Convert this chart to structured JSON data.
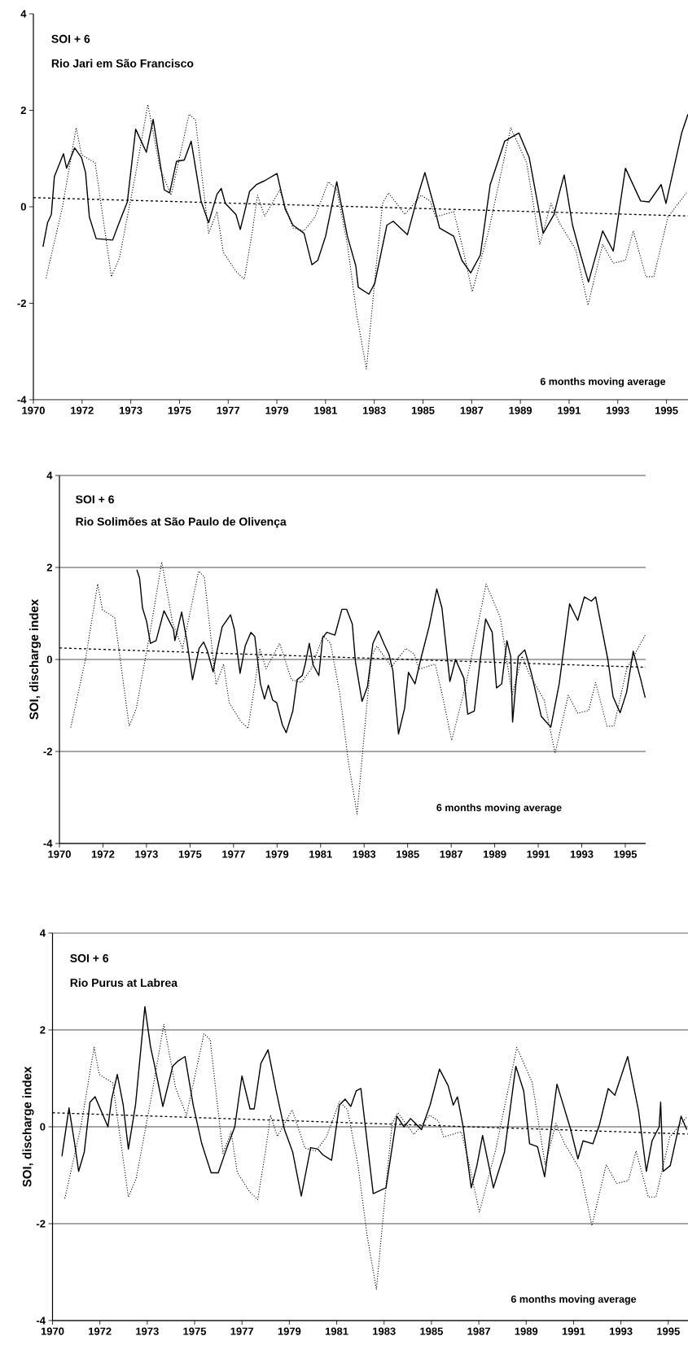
{
  "chart_data": [
    {
      "type": "line",
      "annotations": [
        "SOI + 6",
        "Rio Jari em São Francisco",
        "6 months moving average"
      ],
      "xlim": [
        1969.6,
        1995.45
      ],
      "ylim": [
        -4,
        4
      ],
      "xticks": [
        {
          "value": 1969.6,
          "label": "1970"
        },
        {
          "value": 1971.523,
          "label": "1972"
        },
        {
          "value": 1973.446,
          "label": "1973"
        },
        {
          "value": 1975.369,
          "label": "1975"
        },
        {
          "value": 1977.292,
          "label": "1977"
        },
        {
          "value": 1979.215,
          "label": "1979"
        },
        {
          "value": 1981.138,
          "label": "1981"
        },
        {
          "value": 1983.062,
          "label": "1983"
        },
        {
          "value": 1984.985,
          "label": "1985"
        },
        {
          "value": 1986.908,
          "label": "1987"
        },
        {
          "value": 1988.831,
          "label": "1989"
        },
        {
          "value": 1990.754,
          "label": "1991"
        },
        {
          "value": 1992.677,
          "label": "1993"
        },
        {
          "value": 1994.6,
          "label": "1995"
        }
      ],
      "yticks": [
        -4,
        -2,
        0,
        2,
        4
      ],
      "series": [
        {
          "color": "#000000",
          "line_style": "dotted",
          "x": [
            1970.1,
            1970.75,
            1971.29,
            1971.5,
            1972.04,
            1972.68,
            1973.0,
            1973.64,
            1974.12,
            1974.6,
            1975.04,
            1975.75,
            1976.0,
            1976.52,
            1976.85,
            1977.1,
            1977.6,
            1977.93,
            1978.25,
            1978.45,
            1978.73,
            1979.33,
            1979.85,
            1980.29,
            1980.72,
            1981.25,
            1981.58,
            1982.0,
            1982.37,
            1982.75,
            1983.18,
            1983.39,
            1983.62,
            1984.27,
            1984.91,
            1985.27,
            1985.48,
            1986.2,
            1986.52,
            1986.93,
            1987.58,
            1988.45,
            1989.08,
            1989.6,
            1990.04,
            1990.37,
            1991.02,
            1991.5,
            1992.08,
            1992.5,
            1992.98,
            1993.29,
            1993.79,
            1994.1,
            1994.66,
            1995.39
          ],
          "values": [
            -1.48,
            0,
            1.64,
            1.08,
            0.91,
            -1.45,
            -1.06,
            0.69,
            2.12,
            0.8,
            0.24,
            1.92,
            1.8,
            -0.55,
            -0.1,
            -0.94,
            -1.34,
            -1.5,
            -0.5,
            0.24,
            -0.2,
            0.35,
            -0.44,
            -0.5,
            -0.21,
            0.52,
            0.35,
            -0.78,
            -2.24,
            -3.36,
            -1.0,
            0.07,
            0.29,
            -0.16,
            0.24,
            0.12,
            -0.21,
            -0.1,
            -0.78,
            -1.76,
            -0.5,
            1.64,
            0.91,
            -0.78,
            0.07,
            -0.33,
            -0.89,
            -2.04,
            -0.78,
            -1.17,
            -1.11,
            -0.5,
            -1.45,
            -1.45,
            -0.21,
            0.29
          ]
        },
        {
          "color": "#000000",
          "line_style": "solid",
          "x": [
            1969.98,
            1970.16,
            1970.31,
            1970.43,
            1970.79,
            1970.91,
            1971.23,
            1971.5,
            1971.66,
            1971.81,
            1972.08,
            1972.73,
            1972.95,
            1973.31,
            1973.64,
            1974.06,
            1974.33,
            1974.77,
            1974.98,
            1975.25,
            1975.56,
            1975.83,
            1976.22,
            1976.52,
            1976.85,
            1977.02,
            1977.18,
            1977.6,
            1977.77,
            1978.14,
            1978.41,
            1978.73,
            1979.22,
            1979.54,
            1979.85,
            1980.29,
            1980.6,
            1980.83,
            1981.14,
            1981.58,
            1982.0,
            1982.33,
            1982.43,
            1982.85,
            1983.08,
            1983.56,
            1983.81,
            1984.37,
            1984.79,
            1985.06,
            1985.43,
            1985.64,
            1986.2,
            1986.52,
            1986.87,
            1987.25,
            1987.64,
            1988.21,
            1988.77,
            1989.18,
            1989.73,
            1990.16,
            1990.37,
            1990.56,
            1990.89,
            1991.21,
            1991.52,
            1992.08,
            1992.5,
            1992.98,
            1993.58,
            1993.91,
            1994.39,
            1994.58,
            1995.2,
            1995.45
          ],
          "values": [
            -0.83,
            -0.33,
            -0.16,
            0.63,
            1.1,
            0.8,
            1.22,
            1.02,
            0.71,
            -0.21,
            -0.66,
            -0.69,
            -0.38,
            0.1,
            1.61,
            1.13,
            1.81,
            0.35,
            0.29,
            0.94,
            0.97,
            1.36,
            0.12,
            -0.33,
            0.26,
            0.38,
            0.07,
            -0.16,
            -0.47,
            0.32,
            0.46,
            0.54,
            0.69,
            -0.04,
            -0.38,
            -0.55,
            -1.2,
            -1.11,
            -0.61,
            0.52,
            -0.61,
            -1.22,
            -1.67,
            -1.81,
            -1.59,
            -0.38,
            -0.3,
            -0.58,
            0.24,
            0.71,
            0,
            -0.44,
            -0.61,
            -1.11,
            -1.37,
            -1.0,
            0.46,
            1.36,
            1.53,
            1.02,
            -0.55,
            -0.16,
            0.29,
            0.66,
            -0.38,
            -1.0,
            -1.56,
            -0.5,
            -0.92,
            0.8,
            0.12,
            0.1,
            0.46,
            0.07,
            1.53,
            1.92
          ]
        },
        {
          "color": "#000000",
          "line_style": "dashed",
          "x": [
            1969.6,
            1995.45
          ],
          "values": [
            0.19,
            -0.19
          ]
        }
      ]
    },
    {
      "type": "line",
      "ylabel": "SOI, discharge index",
      "grid": "y",
      "annotations": [
        "SOI + 6",
        "Rio Solimões at São Paulo de Olivença",
        "6 months moving average"
      ],
      "xlim": [
        1969.6,
        1995.5
      ],
      "ylim": [
        -4,
        4
      ],
      "xticks": [
        {
          "value": 1969.6,
          "label": "1970"
        },
        {
          "value": 1971.523,
          "label": "1972"
        },
        {
          "value": 1973.446,
          "label": "1973"
        },
        {
          "value": 1975.369,
          "label": "1975"
        },
        {
          "value": 1977.292,
          "label": "1977"
        },
        {
          "value": 1979.215,
          "label": "1979"
        },
        {
          "value": 1981.138,
          "label": "1981"
        },
        {
          "value": 1983.062,
          "label": "1983"
        },
        {
          "value": 1984.985,
          "label": "1985"
        },
        {
          "value": 1986.908,
          "label": "1987"
        },
        {
          "value": 1988.831,
          "label": "1989"
        },
        {
          "value": 1990.754,
          "label": "1991"
        },
        {
          "value": 1992.677,
          "label": "1993"
        },
        {
          "value": 1994.6,
          "label": "1995"
        }
      ],
      "yticks": [
        -4,
        -2,
        0,
        2,
        4
      ],
      "series": [
        {
          "color": "#000000",
          "line_style": "dotted",
          "x": [
            1970.1,
            1970.75,
            1971.29,
            1971.5,
            1972.04,
            1972.68,
            1973.0,
            1973.64,
            1974.12,
            1974.6,
            1975.04,
            1975.75,
            1976.0,
            1976.52,
            1976.85,
            1977.1,
            1977.6,
            1977.93,
            1978.25,
            1978.45,
            1978.73,
            1979.33,
            1979.85,
            1980.29,
            1980.72,
            1981.25,
            1981.58,
            1982.0,
            1982.37,
            1982.75,
            1983.18,
            1983.39,
            1983.62,
            1984.27,
            1984.91,
            1985.27,
            1985.48,
            1986.2,
            1986.52,
            1986.93,
            1987.58,
            1988.45,
            1989.08,
            1989.6,
            1990.04,
            1990.37,
            1991.02,
            1991.5,
            1992.08,
            1992.5,
            1992.98,
            1993.29,
            1993.79,
            1994.1,
            1994.66,
            1995.48
          ],
          "values": [
            -1.48,
            0,
            1.64,
            1.08,
            0.91,
            -1.45,
            -1.06,
            0.69,
            2.12,
            0.8,
            0.24,
            1.92,
            1.8,
            -0.55,
            -0.1,
            -0.94,
            -1.34,
            -1.5,
            -0.5,
            0.24,
            -0.2,
            0.35,
            -0.44,
            -0.5,
            -0.21,
            0.52,
            0.35,
            -0.78,
            -2.24,
            -3.36,
            -1.0,
            0.07,
            0.29,
            -0.16,
            0.24,
            0.12,
            -0.21,
            -0.1,
            -0.78,
            -1.76,
            -0.5,
            1.64,
            0.91,
            -0.78,
            0.07,
            -0.33,
            -0.89,
            -2.04,
            -0.78,
            -1.17,
            -1.11,
            -0.5,
            -1.45,
            -1.45,
            -0.21,
            0.53
          ]
        },
        {
          "color": "#000000",
          "line_style": "solid",
          "x": [
            1973.02,
            1973.14,
            1973.27,
            1973.45,
            1973.62,
            1973.87,
            1974.22,
            1974.64,
            1974.7,
            1975.0,
            1975.23,
            1975.48,
            1975.77,
            1975.97,
            1976.14,
            1976.39,
            1976.56,
            1976.79,
            1977.16,
            1977.33,
            1977.58,
            1977.81,
            1978.06,
            1978.23,
            1978.48,
            1978.66,
            1978.83,
            1979.02,
            1979.2,
            1979.45,
            1979.62,
            1979.91,
            1980.1,
            1980.33,
            1980.45,
            1980.64,
            1980.81,
            1981.06,
            1981.23,
            1981.41,
            1981.77,
            1982.08,
            1982.29,
            1982.54,
            1982.68,
            1982.97,
            1983.21,
            1983.45,
            1983.7,
            1983.93,
            1984.16,
            1984.33,
            1984.58,
            1984.85,
            1985.02,
            1985.31,
            1985.56,
            1985.93,
            1986.27,
            1986.5,
            1986.85,
            1987.1,
            1987.47,
            1987.64,
            1987.93,
            1988.18,
            1988.43,
            1988.72,
            1988.91,
            1989.14,
            1989.37,
            1989.54,
            1989.62,
            1989.87,
            1990.16,
            1990.45,
            1990.89,
            1991.31,
            1991.68,
            1992.14,
            1992.5,
            1992.79,
            1993.1,
            1993.29,
            1993.83,
            1994.06,
            1994.37,
            1994.66,
            1994.95,
            1995.27,
            1995.48
          ],
          "values": [
            1.95,
            1.77,
            1.12,
            0.83,
            0.35,
            0.41,
            1.06,
            0.65,
            0.41,
            1.03,
            0.41,
            -0.44,
            0.24,
            0.38,
            0.18,
            -0.27,
            0.18,
            0.71,
            0.97,
            0.65,
            -0.3,
            0.3,
            0.59,
            0.5,
            -0.53,
            -0.86,
            -0.56,
            -0.88,
            -0.94,
            -1.42,
            -1.59,
            -1.12,
            -0.44,
            -0.35,
            -0.12,
            0.35,
            -0.12,
            -0.35,
            0.47,
            0.59,
            0.53,
            1.09,
            1.09,
            0.77,
            -0.06,
            -0.91,
            -0.59,
            0.35,
            0.62,
            0.35,
            0.11,
            -0.24,
            -1.62,
            -1.06,
            -0.28,
            -0.53,
            0,
            0.71,
            1.53,
            1.12,
            -0.48,
            0,
            -0.41,
            -1.19,
            -1.12,
            -0.06,
            0.88,
            0.59,
            -0.62,
            -0.53,
            0.41,
            0.06,
            -1.36,
            0.06,
            0.21,
            -0.3,
            -1.24,
            -1.47,
            -0.53,
            1.21,
            0.85,
            1.36,
            1.27,
            1.36,
            0,
            -0.81,
            -1.16,
            -0.71,
            0.18,
            -0.41,
            -0.83
          ]
        },
        {
          "color": "#000000",
          "line_style": "dashed",
          "x": [
            1969.6,
            1995.5
          ],
          "values": [
            0.25,
            -0.17
          ]
        }
      ]
    },
    {
      "type": "line",
      "ylabel": "SOI, discharge index",
      "grid": "y",
      "annotations": [
        "SOI + 6",
        "Rio Purus at Labrea",
        "6 months moving average"
      ],
      "xlim": [
        1969.6,
        1995.4
      ],
      "ylim": [
        -4,
        4
      ],
      "xticks": [
        {
          "value": 1969.6,
          "label": "1970"
        },
        {
          "value": 1971.523,
          "label": "1972"
        },
        {
          "value": 1973.446,
          "label": "1973"
        },
        {
          "value": 1975.369,
          "label": "1975"
        },
        {
          "value": 1977.292,
          "label": "1977"
        },
        {
          "value": 1979.215,
          "label": "1979"
        },
        {
          "value": 1981.138,
          "label": "1981"
        },
        {
          "value": 1983.062,
          "label": "1983"
        },
        {
          "value": 1984.985,
          "label": "1985"
        },
        {
          "value": 1986.908,
          "label": "1987"
        },
        {
          "value": 1988.831,
          "label": "1989"
        },
        {
          "value": 1990.754,
          "label": "1991"
        },
        {
          "value": 1992.677,
          "label": "1993"
        },
        {
          "value": 1994.6,
          "label": "1995"
        }
      ],
      "yticks": [
        -4,
        -2,
        0,
        2,
        4
      ],
      "series": [
        {
          "color": "#000000",
          "line_style": "dotted",
          "x": [
            1970.1,
            1970.75,
            1971.29,
            1971.5,
            1972.04,
            1972.68,
            1973.0,
            1973.64,
            1974.12,
            1974.6,
            1975.04,
            1975.75,
            1976.0,
            1976.52,
            1976.85,
            1977.1,
            1977.6,
            1977.93,
            1978.25,
            1978.45,
            1978.73,
            1979.33,
            1979.85,
            1980.29,
            1980.72,
            1981.25,
            1981.58,
            1982.0,
            1982.37,
            1982.75,
            1983.18,
            1983.39,
            1983.62,
            1984.27,
            1984.91,
            1985.27,
            1985.48,
            1986.2,
            1986.52,
            1986.93,
            1987.58,
            1988.45,
            1989.08,
            1989.6,
            1990.04,
            1990.37,
            1991.02,
            1991.5,
            1992.08,
            1992.5,
            1992.98,
            1993.29,
            1993.79,
            1994.1,
            1994.66,
            1995.35
          ],
          "values": [
            -1.48,
            0,
            1.64,
            1.08,
            0.91,
            -1.45,
            -1.06,
            0.69,
            2.12,
            0.8,
            0.24,
            1.92,
            1.8,
            -0.55,
            -0.1,
            -0.94,
            -1.34,
            -1.5,
            -0.5,
            0.24,
            -0.2,
            0.35,
            -0.44,
            -0.5,
            -0.21,
            0.52,
            0.35,
            -0.78,
            -2.24,
            -3.36,
            -1.0,
            0.07,
            0.29,
            -0.16,
            0.24,
            0.12,
            -0.21,
            -0.1,
            -0.78,
            -1.76,
            -0.5,
            1.64,
            0.91,
            -0.78,
            0.07,
            -0.33,
            -0.89,
            -2.04,
            -0.78,
            -1.17,
            -1.11,
            -0.5,
            -1.45,
            -1.45,
            -0.21,
            0.2
          ]
        },
        {
          "color": "#000000",
          "line_style": "solid",
          "x": [
            1969.98,
            1970.27,
            1970.5,
            1970.66,
            1970.89,
            1971.12,
            1971.33,
            1971.85,
            1972.0,
            1972.23,
            1972.47,
            1972.68,
            1972.97,
            1973.35,
            1973.58,
            1973.75,
            1974.08,
            1974.48,
            1974.7,
            1974.98,
            1975.31,
            1975.66,
            1976.04,
            1976.33,
            1976.66,
            1977.0,
            1977.29,
            1977.62,
            1977.79,
            1978.06,
            1978.35,
            1978.68,
            1979.02,
            1979.35,
            1979.7,
            1980.08,
            1980.37,
            1980.58,
            1980.93,
            1981.25,
            1981.48,
            1981.71,
            1981.93,
            1982.12,
            1982.62,
            1983.14,
            1983.58,
            1983.87,
            1984.14,
            1984.58,
            1984.93,
            1985.31,
            1985.66,
            1985.87,
            1986.04,
            1986.27,
            1986.6,
            1986.83,
            1987.06,
            1987.5,
            1987.95,
            1988.41,
            1988.73,
            1988.97,
            1989.29,
            1989.58,
            1990.08,
            1990.64,
            1990.93,
            1991.14,
            1991.54,
            1991.81,
            1992.16,
            1992.43,
            1992.95,
            1993.39,
            1993.71,
            1993.94,
            1994.23,
            1994.29,
            1994.39,
            1994.68,
            1995.12,
            1995.35
          ],
          "values": [
            -0.61,
            0.39,
            -0.35,
            -0.92,
            -0.52,
            0.51,
            0.62,
            0,
            0.57,
            1.08,
            0.45,
            -0.46,
            0.45,
            2.48,
            1.65,
            1.25,
            0.42,
            1.25,
            1.36,
            1.45,
            0.45,
            -0.35,
            -0.95,
            -0.95,
            -0.46,
            0,
            1.05,
            0.37,
            0.37,
            1.31,
            1.59,
            0.74,
            -0.06,
            -0.52,
            -1.43,
            -0.43,
            -0.46,
            -0.58,
            -0.69,
            0.45,
            0.57,
            0.42,
            0.74,
            0.79,
            -1.38,
            -1.26,
            0.22,
            0,
            0.17,
            -0.06,
            0.45,
            1.19,
            0.85,
            0.45,
            0.62,
            0,
            -1.26,
            -0.8,
            -0.18,
            -1.26,
            -0.52,
            1.25,
            0.74,
            -0.35,
            -0.41,
            -1.03,
            0.88,
            -0.06,
            -0.66,
            -0.29,
            -0.35,
            0.05,
            0.79,
            0.65,
            1.45,
            0.34,
            -0.92,
            -0.29,
            0,
            0.51,
            -0.92,
            -0.8,
            0.22,
            -0.06
          ]
        },
        {
          "color": "#000000",
          "line_style": "dashed",
          "x": [
            1969.6,
            1995.4
          ],
          "values": [
            0.29,
            -0.15
          ]
        }
      ]
    }
  ]
}
